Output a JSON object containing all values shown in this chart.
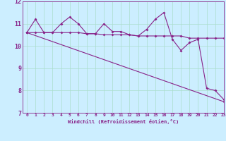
{
  "xlabel": "Windchill (Refroidissement éolien,°C)",
  "background_color": "#cceeff",
  "grid_color": "#aaddcc",
  "line_color": "#882288",
  "x": [
    0,
    1,
    2,
    3,
    4,
    5,
    6,
    7,
    8,
    9,
    10,
    11,
    12,
    13,
    14,
    15,
    16,
    17,
    18,
    19,
    20,
    21,
    22,
    23
  ],
  "line1": [
    10.6,
    11.2,
    10.6,
    10.6,
    11.0,
    11.3,
    11.0,
    10.55,
    10.55,
    11.0,
    10.65,
    10.65,
    10.5,
    10.45,
    10.75,
    11.2,
    11.5,
    10.3,
    9.8,
    10.15,
    10.3,
    8.1,
    8.0,
    7.6
  ],
  "line2": [
    10.6,
    10.6,
    10.6,
    10.6,
    10.6,
    10.6,
    10.6,
    10.55,
    10.55,
    10.5,
    10.5,
    10.5,
    10.5,
    10.45,
    10.45,
    10.45,
    10.45,
    10.45,
    10.45,
    10.35,
    10.35,
    10.35,
    10.35,
    10.35
  ],
  "line3_x": [
    0,
    23
  ],
  "line3_y": [
    10.6,
    7.5
  ],
  "ylim": [
    7,
    12
  ],
  "xlim": [
    -0.5,
    23
  ],
  "yticks": [
    7,
    8,
    9,
    10,
    11,
    12
  ],
  "xticks": [
    0,
    1,
    2,
    3,
    4,
    5,
    6,
    7,
    8,
    9,
    10,
    11,
    12,
    13,
    14,
    15,
    16,
    17,
    18,
    19,
    20,
    21,
    22,
    23
  ],
  "xtick_labels": [
    "0",
    "1",
    "2",
    "3",
    "4",
    "5",
    "6",
    "7",
    "8",
    "9",
    "10",
    "11",
    "12",
    "13",
    "14",
    "15",
    "16",
    "17",
    "18",
    "19",
    "20",
    "21",
    "22",
    "23"
  ]
}
